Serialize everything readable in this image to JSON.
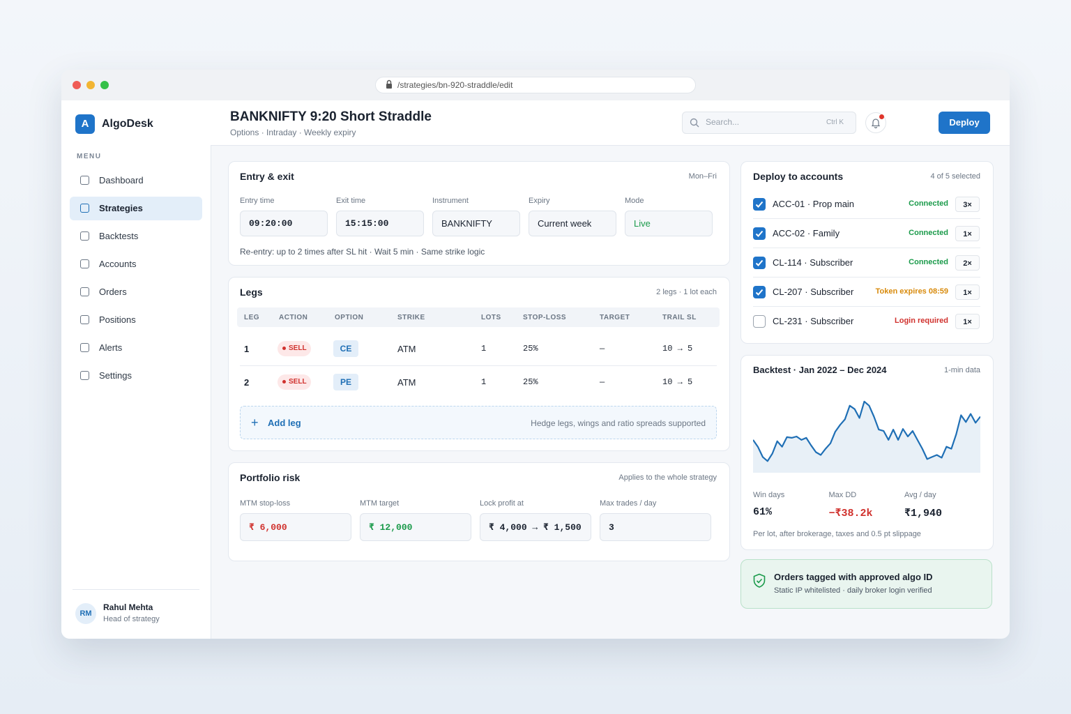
{
  "browser": {
    "url": "/strategies/bn-920-straddle/edit"
  },
  "sidebar": {
    "brand_initial": "A",
    "brand": "AlgoDesk",
    "menu_label": "MENU",
    "nav": [
      {
        "label": "Dashboard",
        "active": false
      },
      {
        "label": "Strategies",
        "active": true
      },
      {
        "label": "Backtests",
        "active": false
      },
      {
        "label": "Accounts",
        "active": false
      },
      {
        "label": "Orders",
        "active": false
      },
      {
        "label": "Positions",
        "active": false
      },
      {
        "label": "Alerts",
        "active": false
      },
      {
        "label": "Settings",
        "active": false
      }
    ],
    "user": {
      "initials": "RM",
      "name": "Rahul Mehta",
      "role": "Head of strategy"
    }
  },
  "header": {
    "title": "BANKNIFTY 9:20 Short Straddle",
    "subtitle": "Options · Intraday · Weekly expiry",
    "search_placeholder": "Search...",
    "search_shortcut": "Ctrl K",
    "button": "Deploy"
  },
  "entry_exit": {
    "title": "Entry & exit",
    "note": "Mon–Fri",
    "fields": [
      {
        "label": "Entry time",
        "value": "09:20:00",
        "mono": true
      },
      {
        "label": "Exit time",
        "value": "15:15:00",
        "mono": true
      },
      {
        "label": "Instrument",
        "value": "BANKNIFTY",
        "mono": false
      },
      {
        "label": "Expiry",
        "value": "Current week",
        "mono": false
      },
      {
        "label": "Mode",
        "value": "Live",
        "mono": false,
        "color": "#1a9a4a"
      }
    ],
    "reentry": "Re-entry: up to 2 times after SL hit · Wait 5 min · Same strike logic"
  },
  "legs": {
    "title": "Legs",
    "note": "2 legs · 1 lot each",
    "columns": [
      "LEG",
      "ACTION",
      "OPTION",
      "STRIKE",
      "LOTS",
      "STOP-LOSS",
      "TARGET",
      "TRAIL SL"
    ],
    "rows": [
      [
        "1",
        "SELL",
        "CE",
        "ATM",
        "1",
        "25%",
        "—",
        "10 → 5"
      ],
      [
        "2",
        "SELL",
        "PE",
        "ATM",
        "1",
        "25%",
        "—",
        "10 → 5"
      ]
    ],
    "add": "Add leg",
    "add_note": "Hedge legs, wings and ratio spreads supported"
  },
  "portfolio_risk": {
    "title": "Portfolio risk",
    "note": "Applies to the whole strategy",
    "fields": [
      {
        "label": "MTM stop-loss",
        "value": "₹ 6,000",
        "color": "#d0312d"
      },
      {
        "label": "MTM target",
        "value": "₹ 12,000",
        "color": "#1a9a4a"
      },
      {
        "label": "Lock profit at",
        "value": "₹ 4,000 → ₹ 1,500",
        "color": "#1b2330"
      },
      {
        "label": "Max trades / day",
        "value": "3",
        "color": "#1b2330"
      }
    ]
  },
  "accounts": {
    "title": "Deploy to accounts",
    "note": "4 of 5 selected",
    "rows": [
      {
        "checked": true,
        "name": "ACC-01 · Prop main",
        "status": "Connected",
        "color": "#1a9a4a",
        "multiplier": "3×"
      },
      {
        "checked": true,
        "name": "ACC-02 · Family",
        "status": "Connected",
        "color": "#1a9a4a",
        "multiplier": "1×"
      },
      {
        "checked": true,
        "name": "CL-114 · Subscriber",
        "status": "Connected",
        "color": "#1a9a4a",
        "multiplier": "2×"
      },
      {
        "checked": true,
        "name": "CL-207 · Subscriber",
        "status": "Token expires 08:59",
        "color": "#d88a0b",
        "multiplier": "1×"
      },
      {
        "checked": false,
        "name": "CL-231 · Subscriber",
        "status": "Login required",
        "color": "#d0312d",
        "multiplier": "1×"
      }
    ]
  },
  "backtest": {
    "title": "Backtest · Jan 2022 – Dec 2024",
    "note": "1-min data",
    "chart_data": {
      "type": "area",
      "color": "#1f6fb5",
      "ylim": [
        0,
        110
      ],
      "values": [
        48,
        38,
        23,
        17,
        28,
        46,
        38,
        52,
        51,
        53,
        48,
        51,
        40,
        30,
        26,
        35,
        43,
        60,
        70,
        78,
        98,
        93,
        80,
        104,
        98,
        82,
        63,
        61,
        48,
        63,
        48,
        64,
        53,
        61,
        48,
        35,
        20,
        23,
        26,
        22,
        38,
        35,
        56,
        84,
        74,
        86,
        73,
        82
      ]
    },
    "stats": [
      {
        "label": "Win days",
        "value": "61%",
        "color": "#1b2330"
      },
      {
        "label": "Max DD",
        "value": "−₹38.2k",
        "color": "#d0312d"
      },
      {
        "label": "Avg / day",
        "value": "₹1,940",
        "color": "#1b2330"
      }
    ],
    "footnote": "Per lot, after brokerage, taxes and 0.5 pt slippage"
  },
  "banner": {
    "title": "Orders tagged with approved algo ID",
    "text": "Static IP whitelisted · daily broker login verified"
  }
}
